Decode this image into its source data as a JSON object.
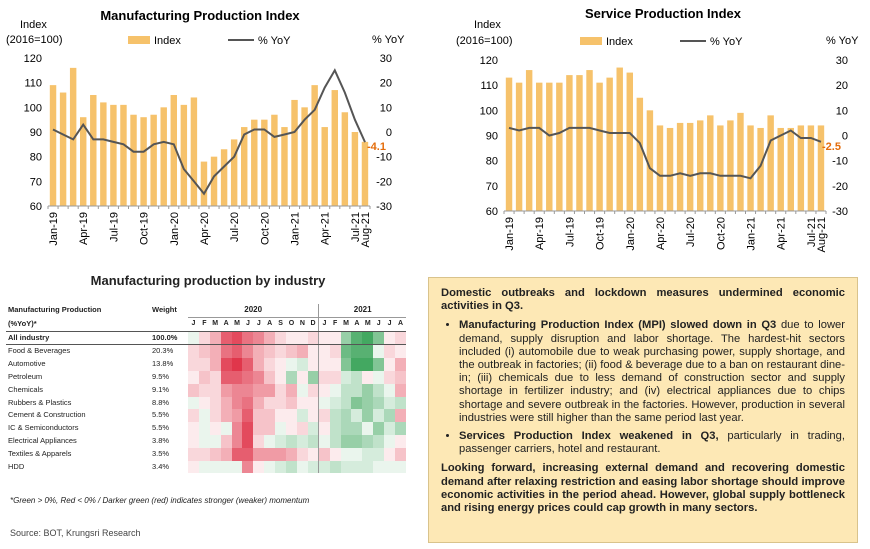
{
  "charts": {
    "mpi": {
      "title": "Manufacturing Production Index",
      "left_axis_label_line1": "Index",
      "left_axis_label_line2": "(2016=100)",
      "right_axis_label": "% YoY",
      "legend_index": "Index",
      "legend_yoy": "% YoY",
      "last_label": "-4.1"
    },
    "spi": {
      "title": "Service Production Index",
      "left_axis_label_line1": "Index",
      "left_axis_label_line2": "(2016=100)",
      "right_axis_label": "% YoY",
      "legend_index": "Index",
      "legend_yoy": "% YoY",
      "last_label": "-2.5"
    }
  },
  "chart_data": [
    {
      "type": "bar",
      "title": "Manufacturing Production Index",
      "x_tick_labels": [
        "Jan-19",
        "Apr-19",
        "Jul-19",
        "Oct-19",
        "Jan-20",
        "Apr-20",
        "Jul-20",
        "Oct-20",
        "Jan-21",
        "Apr-21",
        "Jul-21",
        "Aug-21"
      ],
      "x": [
        "Jan-19",
        "Feb-19",
        "Mar-19",
        "Apr-19",
        "May-19",
        "Jun-19",
        "Jul-19",
        "Aug-19",
        "Sep-19",
        "Oct-19",
        "Nov-19",
        "Dec-19",
        "Jan-20",
        "Feb-20",
        "Mar-20",
        "Apr-20",
        "May-20",
        "Jun-20",
        "Jul-20",
        "Aug-20",
        "Sep-20",
        "Oct-20",
        "Nov-20",
        "Dec-20",
        "Jan-21",
        "Feb-21",
        "Mar-21",
        "Apr-21",
        "May-21",
        "Jun-21",
        "Jul-21",
        "Aug-21"
      ],
      "series": [
        {
          "name": "Index",
          "axis": "left",
          "values": [
            109,
            106,
            116,
            96,
            105,
            102,
            101,
            101,
            97,
            96,
            97,
            100,
            105,
            101,
            104,
            78,
            80,
            83,
            87,
            92,
            95,
            95,
            97,
            92,
            103,
            100,
            109,
            92,
            107,
            98,
            90,
            86
          ]
        },
        {
          "name": "% YoY",
          "axis": "right",
          "values": [
            1,
            -1,
            -3,
            3,
            -3,
            -3,
            -4,
            -5,
            -8,
            -8,
            -5,
            -4,
            -5,
            -15,
            -20,
            -25,
            -18,
            -14,
            -10,
            -1,
            1,
            1,
            -2,
            -1,
            0,
            5,
            9,
            18,
            25,
            16,
            5,
            -4.1
          ]
        }
      ],
      "ylim_left": [
        60,
        120
      ],
      "ylim_right": [
        -30,
        30
      ],
      "yticks_left": [
        60,
        70,
        80,
        90,
        100,
        110,
        120
      ],
      "yticks_right": [
        -30,
        -20,
        -10,
        0,
        10,
        20,
        30
      ]
    },
    {
      "type": "bar",
      "title": "Service Production Index",
      "x_tick_labels": [
        "Jan-19",
        "Apr-19",
        "Jul-19",
        "Oct-19",
        "Jan-20",
        "Apr-20",
        "Jul-20",
        "Oct-20",
        "Jan-21",
        "Apr-21",
        "Jul-21",
        "Aug-21"
      ],
      "x": [
        "Jan-19",
        "Feb-19",
        "Mar-19",
        "Apr-19",
        "May-19",
        "Jun-19",
        "Jul-19",
        "Aug-19",
        "Sep-19",
        "Oct-19",
        "Nov-19",
        "Dec-19",
        "Jan-20",
        "Feb-20",
        "Mar-20",
        "Apr-20",
        "May-20",
        "Jun-20",
        "Jul-20",
        "Aug-20",
        "Sep-20",
        "Oct-20",
        "Nov-20",
        "Dec-20",
        "Jan-21",
        "Feb-21",
        "Mar-21",
        "Apr-21",
        "May-21",
        "Jun-21",
        "Jul-21",
        "Aug-21"
      ],
      "series": [
        {
          "name": "Index",
          "axis": "left",
          "values": [
            113,
            111,
            116,
            111,
            111,
            111,
            114,
            114,
            116,
            111,
            113,
            117,
            115,
            105,
            100,
            94,
            93,
            95,
            95,
            96,
            98,
            94,
            96,
            99,
            94,
            93,
            98,
            93,
            93,
            94,
            94,
            94
          ]
        },
        {
          "name": "% YoY",
          "axis": "right",
          "values": [
            3,
            2,
            3,
            3,
            0,
            1,
            3,
            3,
            3,
            2,
            1,
            1,
            1,
            -3,
            -13,
            -16,
            -16,
            -15,
            -16,
            -15,
            -15,
            -16,
            -16,
            -16,
            -17,
            -12,
            -2,
            0,
            2,
            -1,
            -1,
            -2.5
          ]
        }
      ],
      "ylim_left": [
        60,
        120
      ],
      "ylim_right": [
        -30,
        30
      ],
      "yticks_left": [
        60,
        70,
        80,
        90,
        100,
        110,
        120
      ],
      "yticks_right": [
        -30,
        -20,
        -10,
        0,
        10,
        20,
        30
      ]
    },
    {
      "type": "heatmap",
      "title": "Manufacturing production by industry",
      "header_label_line1": "Manufacturing Production",
      "header_label_line2": "(%YoY)*",
      "weight_header": "Weight",
      "years": [
        {
          "label": "2020",
          "months": [
            "J",
            "F",
            "M",
            "A",
            "M",
            "J",
            "J",
            "A",
            "S",
            "O",
            "N",
            "D"
          ]
        },
        {
          "label": "2021",
          "months": [
            "J",
            "F",
            "M",
            "A",
            "M",
            "J",
            "J",
            "A"
          ]
        }
      ],
      "rows": [
        {
          "name": "All industry",
          "weight": "100.0%",
          "values": [
            1,
            -2,
            -4,
            -8,
            -9,
            -7,
            -6,
            -4,
            -2,
            -1,
            -1,
            -2,
            -1,
            -1,
            5,
            8,
            9,
            6,
            -1,
            -2
          ]
        },
        {
          "name": "Food & Beverages",
          "weight": "20.3%",
          "values": [
            -2,
            -3,
            -4,
            -7,
            -8,
            -6,
            -4,
            -3,
            -2,
            -3,
            -4,
            -1,
            -1,
            -2,
            7,
            8,
            8,
            1,
            -2,
            -1
          ]
        },
        {
          "name": "Automotive",
          "weight": "13.8%",
          "values": [
            -2,
            -2,
            -4,
            -9,
            -10,
            -8,
            -4,
            -2,
            -1,
            1,
            2,
            -1,
            -1,
            -1,
            6,
            9,
            9,
            6,
            -1,
            -4
          ]
        },
        {
          "name": "Petroleum",
          "weight": "9.5%",
          "values": [
            -1,
            -3,
            -2,
            -8,
            -8,
            -7,
            -6,
            -3,
            -1,
            4,
            -1,
            5,
            -2,
            -2,
            2,
            3,
            -1,
            1,
            -2,
            -3
          ]
        },
        {
          "name": "Chemicals",
          "weight": "9.1%",
          "values": [
            -3,
            -2,
            -2,
            -5,
            -6,
            -6,
            -5,
            -5,
            -2,
            -4,
            1,
            -2,
            -1,
            1,
            3,
            3,
            5,
            3,
            1,
            -4
          ]
        },
        {
          "name": "Rubbers & Plastics",
          "weight": "8.8%",
          "values": [
            1,
            -1,
            -2,
            -4,
            -6,
            -7,
            -4,
            -2,
            -2,
            -3,
            -1,
            -1,
            1,
            2,
            3,
            6,
            5,
            4,
            2,
            3
          ]
        },
        {
          "name": "Cement & Construction",
          "weight": "5.5%",
          "values": [
            -2,
            1,
            -2,
            -4,
            -5,
            -8,
            -3,
            -3,
            -1,
            -1,
            2,
            -1,
            -2,
            3,
            4,
            2,
            5,
            2,
            4,
            -4
          ]
        },
        {
          "name": "IC & Semiconductors",
          "weight": "5.5%",
          "values": [
            -1,
            1,
            -1,
            1,
            -6,
            -9,
            -3,
            -3,
            1,
            -1,
            -2,
            2,
            -1,
            3,
            4,
            4,
            1,
            5,
            2,
            4
          ]
        },
        {
          "name": "Electrical Appliances",
          "weight": "3.8%",
          "values": [
            -1,
            1,
            1,
            -3,
            -6,
            -9,
            -2,
            1,
            2,
            3,
            2,
            3,
            1,
            3,
            5,
            5,
            4,
            3,
            1,
            -1
          ]
        },
        {
          "name": "Textiles & Apparels",
          "weight": "3.5%",
          "values": [
            -2,
            -2,
            -3,
            -4,
            -8,
            -8,
            -5,
            -5,
            -5,
            -4,
            -2,
            -1,
            -3,
            -1,
            1,
            1,
            2,
            2,
            -1,
            -3
          ]
        },
        {
          "name": "HDD",
          "weight": "3.4%",
          "values": [
            -1,
            1,
            1,
            1,
            1,
            -6,
            -1,
            1,
            2,
            3,
            1,
            2,
            2,
            3,
            2,
            2,
            2,
            1,
            1,
            1
          ]
        }
      ]
    }
  ],
  "footnote": "*Green > 0%, Red < 0% / Darker green (red) indicates stronger (weaker) momentum",
  "source": "Source: BOT, Krungsri Research",
  "textbox": {
    "intro": "Domestic outbreaks and lockdown measures undermined economic activities in Q3.",
    "bullet1_bold": "Manufacturing Production Index (MPI) slowed down in Q3",
    "bullet1_rest": " due to lower demand, supply disruption and labor shortage. The hardest-hit sectors included (i) automobile due to weak purchasing power, supply shortage, and the outbreak in factories; (ii) food & beverage due to a ban on restaurant dine-in; (iii) chemicals due to less demand of construction sector and supply shortage in fertilizer industry; and (iv) electrical appliances due to chips shortage and severe outbreak in the factories. However, production in several industries were still higher than the same period last year.",
    "bullet2_bold": "Services Production Index weakened in Q3,",
    "bullet2_rest": " particularly in trading, passenger carriers, hotel and restaurant.",
    "outro": "Looking forward, increasing external demand and recovering domestic demand after relaxing restriction and easing labor shortage should improve economic activities in the period ahead. However, global supply bottleneck and rising energy prices could cap growth in many sectors."
  },
  "colors": {
    "bar": "#f6c26b",
    "line": "#555555",
    "label": "#e46c0a",
    "green_strong": "#2e9e4f",
    "red_strong": "#e0364b"
  }
}
